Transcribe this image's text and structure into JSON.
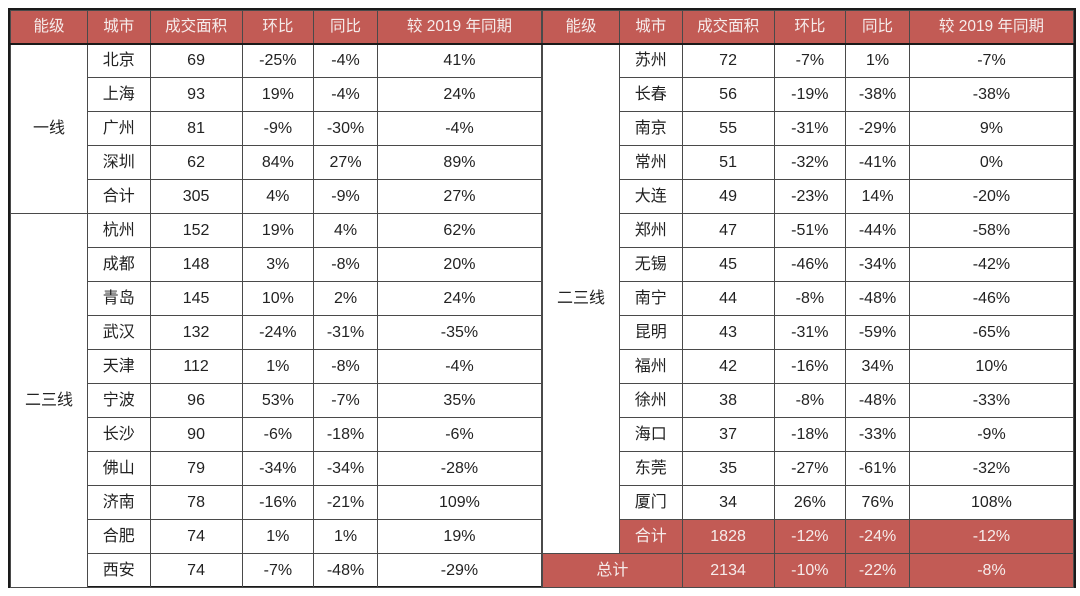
{
  "chart_data": {
    "type": "table",
    "title": "",
    "colors": {
      "accent_red": "#c25b55",
      "header_text": "#f6eceb",
      "body_text": "#222222"
    },
    "columns": [
      "能级",
      "城市",
      "成交面积",
      "环比",
      "同比",
      "较 2019 年同期"
    ],
    "left": {
      "groups": [
        {
          "tier": "一线",
          "rows": [
            {
              "city": "北京",
              "area": "69",
              "mom": "-25%",
              "yoy": "-4%",
              "vs2019": "41%"
            },
            {
              "city": "上海",
              "area": "93",
              "mom": "19%",
              "yoy": "-4%",
              "vs2019": "24%"
            },
            {
              "city": "广州",
              "area": "81",
              "mom": "-9%",
              "yoy": "-30%",
              "vs2019": "-4%"
            },
            {
              "city": "深圳",
              "area": "62",
              "mom": "84%",
              "yoy": "27%",
              "vs2019": "89%"
            },
            {
              "city": "合计",
              "area": "305",
              "mom": "4%",
              "yoy": "-9%",
              "vs2019": "27%"
            }
          ]
        },
        {
          "tier": "二三线",
          "rows": [
            {
              "city": "杭州",
              "area": "152",
              "mom": "19%",
              "yoy": "4%",
              "vs2019": "62%"
            },
            {
              "city": "成都",
              "area": "148",
              "mom": "3%",
              "yoy": "-8%",
              "vs2019": "20%"
            },
            {
              "city": "青岛",
              "area": "145",
              "mom": "10%",
              "yoy": "2%",
              "vs2019": "24%"
            },
            {
              "city": "武汉",
              "area": "132",
              "mom": "-24%",
              "yoy": "-31%",
              "vs2019": "-35%"
            },
            {
              "city": "天津",
              "area": "112",
              "mom": "1%",
              "yoy": "-8%",
              "vs2019": "-4%"
            },
            {
              "city": "宁波",
              "area": "96",
              "mom": "53%",
              "yoy": "-7%",
              "vs2019": "35%"
            },
            {
              "city": "长沙",
              "area": "90",
              "mom": "-6%",
              "yoy": "-18%",
              "vs2019": "-6%"
            },
            {
              "city": "佛山",
              "area": "79",
              "mom": "-34%",
              "yoy": "-34%",
              "vs2019": "-28%"
            },
            {
              "city": "济南",
              "area": "78",
              "mom": "-16%",
              "yoy": "-21%",
              "vs2019": "109%"
            },
            {
              "city": "合肥",
              "area": "74",
              "mom": "1%",
              "yoy": "1%",
              "vs2019": "19%"
            },
            {
              "city": "西安",
              "area": "74",
              "mom": "-7%",
              "yoy": "-48%",
              "vs2019": "-29%"
            }
          ]
        }
      ]
    },
    "right": {
      "groups": [
        {
          "tier": "二三线",
          "rows": [
            {
              "city": "苏州",
              "area": "72",
              "mom": "-7%",
              "yoy": "1%",
              "vs2019": "-7%"
            },
            {
              "city": "长春",
              "area": "56",
              "mom": "-19%",
              "yoy": "-38%",
              "vs2019": "-38%"
            },
            {
              "city": "南京",
              "area": "55",
              "mom": "-31%",
              "yoy": "-29%",
              "vs2019": "9%"
            },
            {
              "city": "常州",
              "area": "51",
              "mom": "-32%",
              "yoy": "-41%",
              "vs2019": "0%"
            },
            {
              "city": "大连",
              "area": "49",
              "mom": "-23%",
              "yoy": "14%",
              "vs2019": "-20%"
            },
            {
              "city": "郑州",
              "area": "47",
              "mom": "-51%",
              "yoy": "-44%",
              "vs2019": "-58%"
            },
            {
              "city": "无锡",
              "area": "45",
              "mom": "-46%",
              "yoy": "-34%",
              "vs2019": "-42%"
            },
            {
              "city": "南宁",
              "area": "44",
              "mom": "-8%",
              "yoy": "-48%",
              "vs2019": "-46%"
            },
            {
              "city": "昆明",
              "area": "43",
              "mom": "-31%",
              "yoy": "-59%",
              "vs2019": "-65%"
            },
            {
              "city": "福州",
              "area": "42",
              "mom": "-16%",
              "yoy": "34%",
              "vs2019": "10%"
            },
            {
              "city": "徐州",
              "area": "38",
              "mom": "-8%",
              "yoy": "-48%",
              "vs2019": "-33%"
            },
            {
              "city": "海口",
              "area": "37",
              "mom": "-18%",
              "yoy": "-33%",
              "vs2019": "-9%"
            },
            {
              "city": "东莞",
              "area": "35",
              "mom": "-27%",
              "yoy": "-61%",
              "vs2019": "-32%"
            },
            {
              "city": "厦门",
              "area": "34",
              "mom": "26%",
              "yoy": "76%",
              "vs2019": "108%"
            }
          ]
        }
      ],
      "subtotal": {
        "label": "合计",
        "area": "1828",
        "mom": "-12%",
        "yoy": "-24%",
        "vs2019": "-12%"
      },
      "grand_total": {
        "label": "总计",
        "area": "2134",
        "mom": "-10%",
        "yoy": "-22%",
        "vs2019": "-8%"
      }
    }
  }
}
